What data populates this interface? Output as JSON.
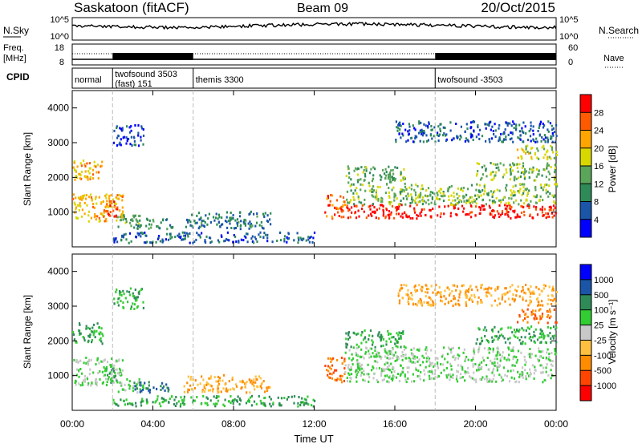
{
  "header": {
    "station": "Saskatoon (fitACF)",
    "beam": "Beam 09",
    "date": "20/Oct/2015"
  },
  "noise_panel": {
    "label": "N.Sky",
    "right_label": "N.Search",
    "left_ticks": [
      "10^5",
      "10^0"
    ],
    "right_ticks": [
      "10^5",
      "10^0"
    ]
  },
  "freq_panel": {
    "label_line1": "Freq.",
    "label_line2": "[MHz]",
    "left_ticks": [
      "18",
      "8"
    ],
    "right_ticks": [
      "60",
      "0"
    ],
    "right_label": "Nave"
  },
  "cpid": {
    "label": "CPID",
    "segments": [
      {
        "start_hour": 0,
        "line1": "normal",
        "line2": ""
      },
      {
        "start_hour": 2,
        "line1": "twofsound 3503",
        "line2": "(fast) 151"
      },
      {
        "start_hour": 6,
        "line1": "themis 3300",
        "line2": ""
      },
      {
        "start_hour": 18,
        "line1": "twofsound -3503",
        "line2": ""
      }
    ]
  },
  "colors": {
    "power_scale": [
      "#0000ff",
      "#1a55a8",
      "#2e8b57",
      "#5aa55a",
      "#d8d800",
      "#ffa500",
      "#ff5a00",
      "#ff0000"
    ],
    "velocity_scale": [
      "#ff0000",
      "#ff4500",
      "#ff8c00",
      "#ffc040",
      "#c8c8c8",
      "#32cd32",
      "#2e8b57",
      "#1a55a8",
      "#0000ff"
    ]
  },
  "x_axis": {
    "title": "Time UT",
    "ticks": [
      "00:00",
      "04:00",
      "08:00",
      "12:00",
      "16:00",
      "20:00",
      "00:00"
    ]
  },
  "power_panel": {
    "ylabel": "Slant Range [km]",
    "yticks": [
      "1000",
      "2000",
      "3000",
      "4000"
    ],
    "colorbar_label": "Power [dB]",
    "colorbar_ticks": [
      "4",
      "8",
      "12",
      "16",
      "20",
      "24",
      "28"
    ]
  },
  "velocity_panel": {
    "ylabel": "Slant Range [km]",
    "yticks": [
      "1000",
      "2000",
      "3000",
      "4000"
    ],
    "colorbar_label": "Velocity [m s⁻¹]",
    "colorbar_ticks": [
      "1000",
      "500",
      "100",
      "25",
      "-25",
      "-100",
      "-500",
      "-1000"
    ]
  },
  "chart_data": {
    "type": "heatmap",
    "x_unit": "hours UT",
    "x_range": [
      0,
      24
    ],
    "y_range": [
      0,
      4500
    ],
    "power_range_dB": [
      0,
      30
    ],
    "scatter_regions": [
      {
        "t": [
          0,
          1.5
        ],
        "r": [
          1900,
          2500
        ],
        "power": 20,
        "velocity": 100
      },
      {
        "t": [
          0,
          2.5
        ],
        "r": [
          700,
          1500
        ],
        "power": 20,
        "velocity": 25
      },
      {
        "t": [
          1.5,
          2.2
        ],
        "r": [
          700,
          1300
        ],
        "power": 26,
        "velocity": 100
      },
      {
        "t": [
          2.2,
          3.5
        ],
        "r": [
          500,
          900
        ],
        "power": 12,
        "velocity": 25
      },
      {
        "t": [
          3.0,
          5.0
        ],
        "r": [
          500,
          800
        ],
        "power": 10,
        "velocity": 500
      },
      {
        "t": [
          5.5,
          9.8
        ],
        "r": [
          500,
          1000
        ],
        "power": 8,
        "velocity": -100
      },
      {
        "t": [
          2.0,
          12.0
        ],
        "r": [
          100,
          400
        ],
        "power": 6,
        "velocity": 100
      },
      {
        "t": [
          12.5,
          13.5
        ],
        "r": [
          800,
          1500
        ],
        "power": 24,
        "velocity": -500
      },
      {
        "t": [
          13.5,
          24
        ],
        "r": [
          800,
          1200
        ],
        "power": 28,
        "velocity": 25
      },
      {
        "t": [
          13.5,
          24
        ],
        "r": [
          1200,
          1800
        ],
        "power": 14,
        "velocity": 25
      },
      {
        "t": [
          13.5,
          16.5
        ],
        "r": [
          1800,
          2300
        ],
        "power": 12,
        "velocity": 100
      },
      {
        "t": [
          20,
          24
        ],
        "r": [
          1900,
          2400
        ],
        "power": 14,
        "velocity": 100
      },
      {
        "t": [
          22,
          24
        ],
        "r": [
          2500,
          2900
        ],
        "power": 16,
        "velocity": -500
      },
      {
        "t": [
          2.0,
          3.5
        ],
        "r": [
          2900,
          3500
        ],
        "power": 4,
        "velocity": 100
      },
      {
        "t": [
          16,
          24
        ],
        "r": [
          3000,
          3600
        ],
        "power": 6,
        "velocity": -100
      }
    ],
    "cpid_changes_hours": [
      2,
      6,
      18
    ]
  }
}
